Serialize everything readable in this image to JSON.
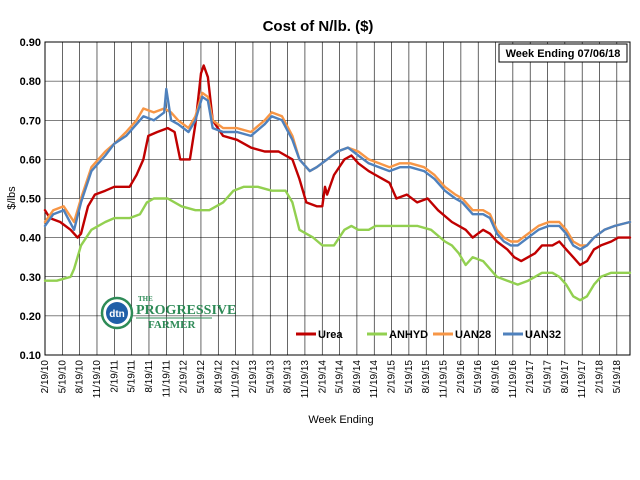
{
  "chart_data": {
    "type": "line",
    "title": "Cost of N/lb. ($)",
    "note": "Week Ending 07/06/18",
    "xlabel": "Week Ending",
    "ylabel": "$/lbs",
    "ylim": [
      0.1,
      0.9
    ],
    "yticks": [
      "0.10",
      "0.20",
      "0.30",
      "0.40",
      "0.50",
      "0.60",
      "0.70",
      "0.80",
      "0.90"
    ],
    "xlim": [
      2010.13,
      2018.57
    ],
    "xticks": [
      "2/19/10",
      "5/19/10",
      "8/19/10",
      "11/19/10",
      "2/19/11",
      "5/19/11",
      "8/19/11",
      "11/19/11",
      "2/19/12",
      "5/19/12",
      "8/19/12",
      "11/19/12",
      "2/19/13",
      "5/19/13",
      "8/19/13",
      "11/19/13",
      "2/19/14",
      "5/19/14",
      "8/19/14",
      "11/19/14",
      "2/19/15",
      "5/19/15",
      "8/19/15",
      "11/19/15",
      "2/19/16",
      "5/19/16",
      "8/19/16",
      "11/19/16",
      "2/19/17",
      "5/19/17",
      "8/19/17",
      "11/19/17",
      "2/19/18",
      "5/19/18"
    ],
    "grid": true,
    "legend_position": "bottom-right",
    "series": [
      {
        "name": "Urea",
        "color": "#c00000",
        "points": [
          [
            2010.13,
            0.47
          ],
          [
            2010.2,
            0.45
          ],
          [
            2010.35,
            0.44
          ],
          [
            2010.5,
            0.42
          ],
          [
            2010.6,
            0.4
          ],
          [
            2010.65,
            0.41
          ],
          [
            2010.75,
            0.48
          ],
          [
            2010.85,
            0.51
          ],
          [
            2011.0,
            0.52
          ],
          [
            2011.13,
            0.53
          ],
          [
            2011.35,
            0.53
          ],
          [
            2011.45,
            0.56
          ],
          [
            2011.55,
            0.6
          ],
          [
            2011.62,
            0.66
          ],
          [
            2011.75,
            0.67
          ],
          [
            2011.9,
            0.68
          ],
          [
            2012.0,
            0.67
          ],
          [
            2012.08,
            0.6
          ],
          [
            2012.22,
            0.6
          ],
          [
            2012.3,
            0.69
          ],
          [
            2012.38,
            0.82
          ],
          [
            2012.42,
            0.84
          ],
          [
            2012.48,
            0.81
          ],
          [
            2012.55,
            0.7
          ],
          [
            2012.7,
            0.66
          ],
          [
            2012.9,
            0.65
          ],
          [
            2013.1,
            0.63
          ],
          [
            2013.3,
            0.62
          ],
          [
            2013.5,
            0.62
          ],
          [
            2013.7,
            0.6
          ],
          [
            2013.8,
            0.55
          ],
          [
            2013.9,
            0.49
          ],
          [
            2014.05,
            0.48
          ],
          [
            2014.13,
            0.48
          ],
          [
            2014.17,
            0.53
          ],
          [
            2014.2,
            0.51
          ],
          [
            2014.3,
            0.56
          ],
          [
            2014.45,
            0.6
          ],
          [
            2014.55,
            0.61
          ],
          [
            2014.65,
            0.59
          ],
          [
            2014.8,
            0.57
          ],
          [
            2014.9,
            0.56
          ],
          [
            2015.0,
            0.55
          ],
          [
            2015.1,
            0.54
          ],
          [
            2015.2,
            0.5
          ],
          [
            2015.35,
            0.51
          ],
          [
            2015.5,
            0.49
          ],
          [
            2015.65,
            0.5
          ],
          [
            2015.8,
            0.47
          ],
          [
            2016.0,
            0.44
          ],
          [
            2016.2,
            0.42
          ],
          [
            2016.3,
            0.4
          ],
          [
            2016.45,
            0.42
          ],
          [
            2016.55,
            0.41
          ],
          [
            2016.65,
            0.39
          ],
          [
            2016.8,
            0.37
          ],
          [
            2016.9,
            0.35
          ],
          [
            2017.0,
            0.34
          ],
          [
            2017.1,
            0.35
          ],
          [
            2017.2,
            0.36
          ],
          [
            2017.3,
            0.38
          ],
          [
            2017.45,
            0.38
          ],
          [
            2017.55,
            0.39
          ],
          [
            2017.65,
            0.37
          ],
          [
            2017.75,
            0.35
          ],
          [
            2017.85,
            0.33
          ],
          [
            2017.95,
            0.34
          ],
          [
            2018.05,
            0.37
          ],
          [
            2018.15,
            0.38
          ],
          [
            2018.3,
            0.39
          ],
          [
            2018.4,
            0.4
          ],
          [
            2018.57,
            0.4
          ]
        ]
      },
      {
        "name": "ANHYD",
        "color": "#92d050",
        "points": [
          [
            2010.13,
            0.29
          ],
          [
            2010.3,
            0.29
          ],
          [
            2010.5,
            0.3
          ],
          [
            2010.55,
            0.32
          ],
          [
            2010.65,
            0.38
          ],
          [
            2010.8,
            0.42
          ],
          [
            2011.0,
            0.44
          ],
          [
            2011.13,
            0.45
          ],
          [
            2011.35,
            0.45
          ],
          [
            2011.5,
            0.46
          ],
          [
            2011.6,
            0.49
          ],
          [
            2011.7,
            0.5
          ],
          [
            2011.9,
            0.5
          ],
          [
            2012.1,
            0.48
          ],
          [
            2012.3,
            0.47
          ],
          [
            2012.5,
            0.47
          ],
          [
            2012.7,
            0.49
          ],
          [
            2012.85,
            0.52
          ],
          [
            2013.0,
            0.53
          ],
          [
            2013.2,
            0.53
          ],
          [
            2013.4,
            0.52
          ],
          [
            2013.6,
            0.52
          ],
          [
            2013.7,
            0.49
          ],
          [
            2013.8,
            0.42
          ],
          [
            2014.0,
            0.4
          ],
          [
            2014.13,
            0.38
          ],
          [
            2014.3,
            0.38
          ],
          [
            2014.45,
            0.42
          ],
          [
            2014.55,
            0.43
          ],
          [
            2014.65,
            0.42
          ],
          [
            2014.8,
            0.42
          ],
          [
            2014.9,
            0.43
          ],
          [
            2015.1,
            0.43
          ],
          [
            2015.3,
            0.43
          ],
          [
            2015.5,
            0.43
          ],
          [
            2015.7,
            0.42
          ],
          [
            2015.9,
            0.39
          ],
          [
            2016.0,
            0.38
          ],
          [
            2016.1,
            0.36
          ],
          [
            2016.2,
            0.33
          ],
          [
            2016.3,
            0.35
          ],
          [
            2016.45,
            0.34
          ],
          [
            2016.55,
            0.32
          ],
          [
            2016.65,
            0.3
          ],
          [
            2016.8,
            0.29
          ],
          [
            2016.95,
            0.28
          ],
          [
            2017.1,
            0.29
          ],
          [
            2017.2,
            0.3
          ],
          [
            2017.3,
            0.31
          ],
          [
            2017.45,
            0.31
          ],
          [
            2017.55,
            0.3
          ],
          [
            2017.65,
            0.28
          ],
          [
            2017.75,
            0.25
          ],
          [
            2017.85,
            0.24
          ],
          [
            2017.95,
            0.25
          ],
          [
            2018.05,
            0.28
          ],
          [
            2018.15,
            0.3
          ],
          [
            2018.3,
            0.31
          ],
          [
            2018.57,
            0.31
          ]
        ]
      },
      {
        "name": "UAN28",
        "color": "#f79646",
        "points": [
          [
            2010.13,
            0.44
          ],
          [
            2010.25,
            0.47
          ],
          [
            2010.4,
            0.48
          ],
          [
            2010.55,
            0.44
          ],
          [
            2010.65,
            0.5
          ],
          [
            2010.8,
            0.58
          ],
          [
            2011.0,
            0.62
          ],
          [
            2011.13,
            0.64
          ],
          [
            2011.3,
            0.67
          ],
          [
            2011.45,
            0.7
          ],
          [
            2011.55,
            0.73
          ],
          [
            2011.7,
            0.72
          ],
          [
            2011.85,
            0.73
          ],
          [
            2011.95,
            0.72
          ],
          [
            2012.05,
            0.7
          ],
          [
            2012.2,
            0.68
          ],
          [
            2012.3,
            0.71
          ],
          [
            2012.4,
            0.77
          ],
          [
            2012.48,
            0.76
          ],
          [
            2012.55,
            0.7
          ],
          [
            2012.7,
            0.68
          ],
          [
            2012.9,
            0.68
          ],
          [
            2013.1,
            0.67
          ],
          [
            2013.3,
            0.7
          ],
          [
            2013.4,
            0.72
          ],
          [
            2013.55,
            0.71
          ],
          [
            2013.7,
            0.66
          ],
          [
            2013.8,
            0.6
          ],
          [
            2013.95,
            0.57
          ],
          [
            2014.05,
            0.58
          ],
          [
            2014.2,
            0.6
          ],
          [
            2014.35,
            0.62
          ],
          [
            2014.5,
            0.63
          ],
          [
            2014.65,
            0.62
          ],
          [
            2014.8,
            0.6
          ],
          [
            2014.95,
            0.59
          ],
          [
            2015.1,
            0.58
          ],
          [
            2015.25,
            0.59
          ],
          [
            2015.4,
            0.59
          ],
          [
            2015.6,
            0.58
          ],
          [
            2015.75,
            0.56
          ],
          [
            2015.9,
            0.53
          ],
          [
            2016.05,
            0.51
          ],
          [
            2016.15,
            0.5
          ],
          [
            2016.3,
            0.47
          ],
          [
            2016.45,
            0.47
          ],
          [
            2016.55,
            0.46
          ],
          [
            2016.65,
            0.42
          ],
          [
            2016.75,
            0.4
          ],
          [
            2016.85,
            0.39
          ],
          [
            2016.95,
            0.39
          ],
          [
            2017.1,
            0.41
          ],
          [
            2017.25,
            0.43
          ],
          [
            2017.4,
            0.44
          ],
          [
            2017.55,
            0.44
          ],
          [
            2017.65,
            0.42
          ],
          [
            2017.75,
            0.39
          ],
          [
            2017.85,
            0.38
          ],
          [
            2017.95,
            0.38
          ],
          [
            2018.05,
            0.4
          ],
          [
            2018.2,
            0.42
          ],
          [
            2018.35,
            0.43
          ],
          [
            2018.57,
            0.44
          ]
        ]
      },
      {
        "name": "UAN32",
        "color": "#4f81bd",
        "points": [
          [
            2010.13,
            0.43
          ],
          [
            2010.25,
            0.46
          ],
          [
            2010.4,
            0.47
          ],
          [
            2010.55,
            0.42
          ],
          [
            2010.65,
            0.49
          ],
          [
            2010.8,
            0.57
          ],
          [
            2011.0,
            0.61
          ],
          [
            2011.13,
            0.64
          ],
          [
            2011.3,
            0.66
          ],
          [
            2011.45,
            0.69
          ],
          [
            2011.55,
            0.71
          ],
          [
            2011.7,
            0.7
          ],
          [
            2011.85,
            0.72
          ],
          [
            2011.88,
            0.78
          ],
          [
            2011.95,
            0.7
          ],
          [
            2012.05,
            0.69
          ],
          [
            2012.2,
            0.67
          ],
          [
            2012.3,
            0.7
          ],
          [
            2012.4,
            0.76
          ],
          [
            2012.48,
            0.75
          ],
          [
            2012.55,
            0.68
          ],
          [
            2012.7,
            0.67
          ],
          [
            2012.9,
            0.67
          ],
          [
            2013.1,
            0.66
          ],
          [
            2013.3,
            0.69
          ],
          [
            2013.4,
            0.71
          ],
          [
            2013.55,
            0.7
          ],
          [
            2013.7,
            0.65
          ],
          [
            2013.8,
            0.6
          ],
          [
            2013.95,
            0.57
          ],
          [
            2014.05,
            0.58
          ],
          [
            2014.2,
            0.6
          ],
          [
            2014.35,
            0.62
          ],
          [
            2014.5,
            0.63
          ],
          [
            2014.65,
            0.61
          ],
          [
            2014.8,
            0.59
          ],
          [
            2014.95,
            0.58
          ],
          [
            2015.1,
            0.57
          ],
          [
            2015.25,
            0.58
          ],
          [
            2015.4,
            0.58
          ],
          [
            2015.6,
            0.57
          ],
          [
            2015.75,
            0.55
          ],
          [
            2015.9,
            0.52
          ],
          [
            2016.05,
            0.5
          ],
          [
            2016.15,
            0.49
          ],
          [
            2016.3,
            0.46
          ],
          [
            2016.45,
            0.46
          ],
          [
            2016.55,
            0.45
          ],
          [
            2016.65,
            0.41
          ],
          [
            2016.75,
            0.39
          ],
          [
            2016.85,
            0.38
          ],
          [
            2016.95,
            0.38
          ],
          [
            2017.1,
            0.4
          ],
          [
            2017.25,
            0.42
          ],
          [
            2017.4,
            0.43
          ],
          [
            2017.55,
            0.43
          ],
          [
            2017.65,
            0.41
          ],
          [
            2017.75,
            0.38
          ],
          [
            2017.85,
            0.37
          ],
          [
            2017.95,
            0.38
          ],
          [
            2018.05,
            0.4
          ],
          [
            2018.2,
            0.42
          ],
          [
            2018.35,
            0.43
          ],
          [
            2018.57,
            0.44
          ]
        ]
      }
    ]
  },
  "logo": {
    "mark": "dtn",
    "line1": "THE",
    "line2": "PROGRESSIVE",
    "line3": "FARMER"
  }
}
